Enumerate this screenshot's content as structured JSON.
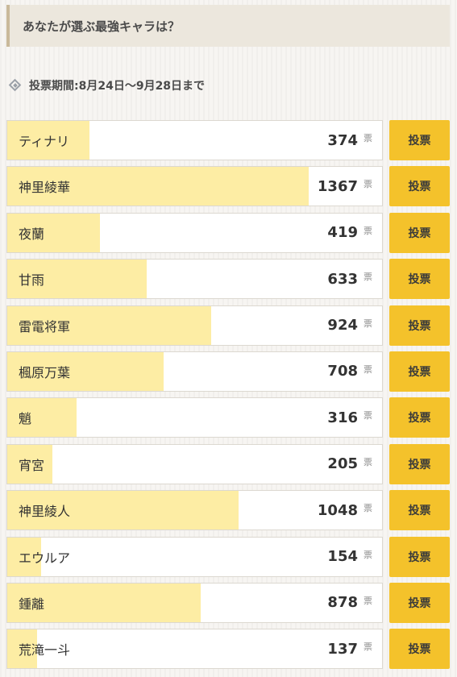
{
  "question": "あなたが選ぶ最強キャラは？",
  "period": "投票期間:8月24日〜9月28日まで",
  "unit_label": "票",
  "vote_label": "投票",
  "max_votes": 1367,
  "colors": {
    "bar_fill": "#fdeda4",
    "button": "#f4c22b",
    "question_bg": "#ece7dd"
  },
  "candidates": [
    {
      "name": "ティナリ",
      "votes": 374
    },
    {
      "name": "神里綾華",
      "votes": 1367
    },
    {
      "name": "夜蘭",
      "votes": 419
    },
    {
      "name": "甘雨",
      "votes": 633
    },
    {
      "name": "雷電将軍",
      "votes": 924
    },
    {
      "name": "楓原万葉",
      "votes": 708
    },
    {
      "name": "魈",
      "votes": 316
    },
    {
      "name": "宵宮",
      "votes": 205
    },
    {
      "name": "神里綾人",
      "votes": 1048
    },
    {
      "name": "エウルア",
      "votes": 154
    },
    {
      "name": "鍾離",
      "votes": 878
    },
    {
      "name": "荒滝一斗",
      "votes": 137
    }
  ]
}
